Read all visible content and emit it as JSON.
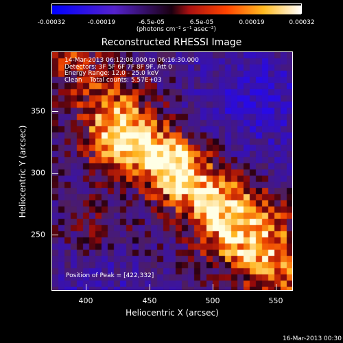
{
  "colorbar": {
    "tick_labels": [
      "-0.00032",
      "-0.00019",
      "-6.5e-05",
      "6.5e-05",
      "0.00019",
      "0.00032"
    ],
    "unit_label": "(photons cm⁻² s⁻¹ asec⁻²)",
    "colors": [
      "#0000ff",
      "#6633cc",
      "#cc2222",
      "#ff6600",
      "#ffd24a",
      "#ffffff"
    ]
  },
  "image": {
    "title": "Reconstructed RHESSI Image",
    "info_lines": [
      "14-Mar-2013 06:12:08.000 to 06:16:30.000",
      "Detectors: 3F 5F 6F 7F 8F 9F, Att 0",
      "Energy Range: 12.0 - 25.0 keV",
      "Clean    Total counts: 5.57E+03"
    ],
    "peak_label": "Position of Peak = [422,332]"
  },
  "axes": {
    "x_label": "Heliocentric X (arcsec)",
    "y_label": "Heliocentric Y (arcsec)",
    "x_ticks": [
      "400",
      "450",
      "500",
      "550"
    ],
    "y_ticks": [
      "250",
      "300",
      "350"
    ]
  },
  "footer": {
    "timestamp": "16-Mar-2013 00:30"
  }
}
